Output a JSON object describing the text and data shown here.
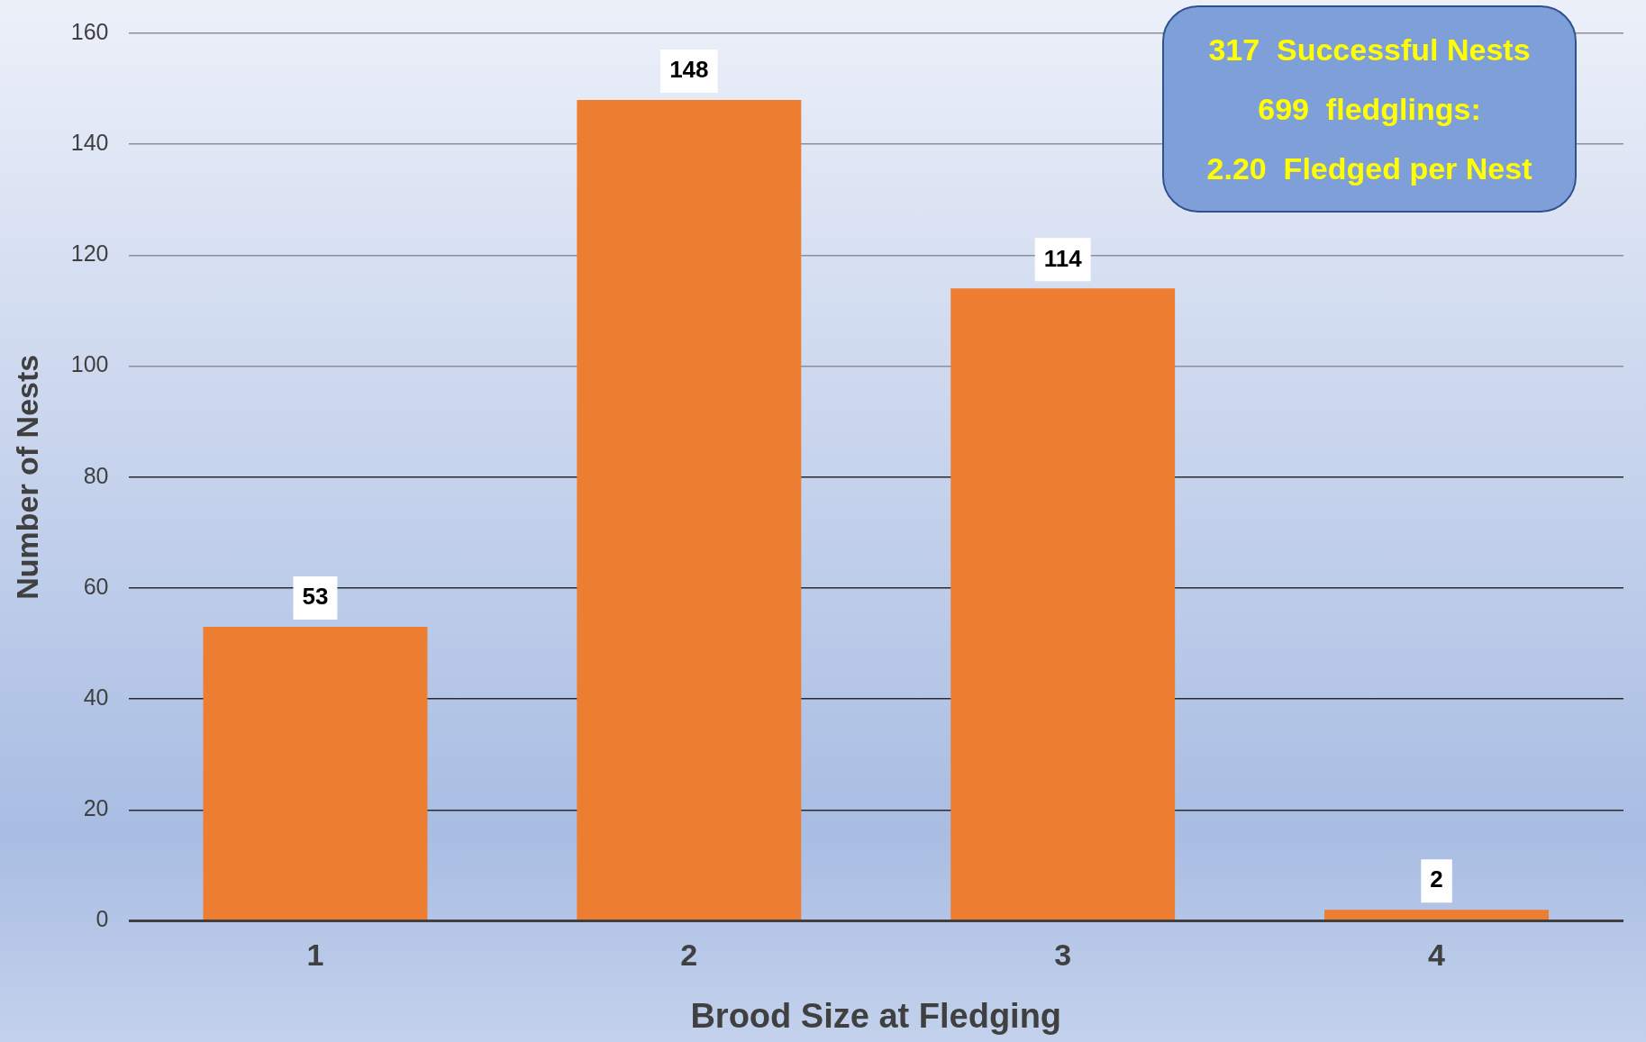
{
  "chart_data": {
    "type": "bar",
    "xlabel": "Brood Size at Fledging",
    "ylabel": "Number of Nests",
    "categories": [
      "1",
      "2",
      "3",
      "4"
    ],
    "values": [
      53,
      148,
      114,
      2
    ],
    "color": "#ed7d31",
    "ylim": [
      0,
      160
    ],
    "yticks": [
      0,
      20,
      40,
      60,
      80,
      100,
      120,
      140,
      160
    ],
    "grid": "y",
    "data_labels": true,
    "annotations": [
      "317  Successful Nests",
      "699  fledglings:",
      "2.20  Fledged per Nest"
    ]
  }
}
